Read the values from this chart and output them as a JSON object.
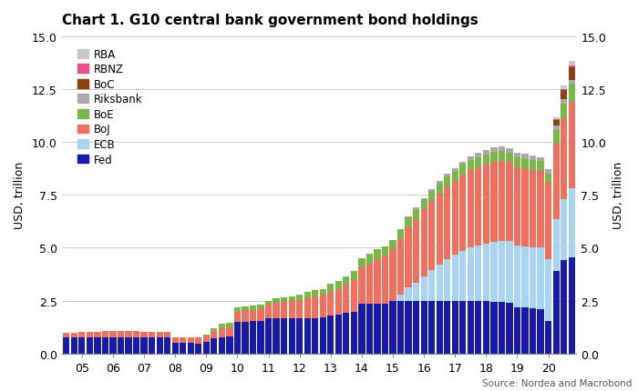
{
  "title": "Chart 1. G10 central bank government bond holdings",
  "ylabel_left": "USD, trillion",
  "ylabel_right": "USD, trillion",
  "source": "Source: Nordea and Macrobond",
  "ylim": [
    0,
    15.0
  ],
  "yticks": [
    0.0,
    2.5,
    5.0,
    7.5,
    10.0,
    12.5,
    15.0
  ],
  "colors": {
    "Fed": "#1a1aaa",
    "ECB": "#a8d4f0",
    "BoJ": "#f07060",
    "BoE": "#7ab648",
    "Riksbank": "#aaaaaa",
    "BoC": "#8B4010",
    "RBNZ": "#e8508a",
    "RBA": "#c8c8c8"
  },
  "series_order": [
    "Fed",
    "ECB",
    "BoJ",
    "BoE",
    "Riksbank",
    "BoC",
    "RBNZ",
    "RBA"
  ],
  "xtick_labels": [
    "05",
    "06",
    "07",
    "08",
    "09",
    "10",
    "11",
    "12",
    "13",
    "14",
    "15",
    "16",
    "17",
    "18",
    "19",
    "20"
  ],
  "data": {
    "Fed": [
      0.74,
      0.74,
      0.74,
      0.75,
      0.75,
      0.75,
      0.76,
      0.76,
      0.76,
      0.76,
      0.74,
      0.74,
      0.74,
      0.74,
      0.5,
      0.5,
      0.5,
      0.48,
      0.55,
      0.7,
      0.78,
      0.79,
      1.5,
      1.51,
      1.52,
      1.53,
      1.65,
      1.66,
      1.66,
      1.66,
      1.66,
      1.67,
      1.68,
      1.7,
      1.8,
      1.85,
      1.9,
      1.95,
      2.35,
      2.36,
      2.36,
      2.36,
      2.46,
      2.46,
      2.46,
      2.46,
      2.46,
      2.46,
      2.46,
      2.46,
      2.46,
      2.46,
      2.46,
      2.46,
      2.46,
      2.44,
      2.42,
      2.4,
      2.2,
      2.18,
      2.12,
      2.1,
      1.55,
      3.9,
      4.4,
      4.55
    ],
    "ECB": [
      0.0,
      0.0,
      0.0,
      0.0,
      0.0,
      0.0,
      0.0,
      0.0,
      0.0,
      0.0,
      0.0,
      0.0,
      0.0,
      0.0,
      0.0,
      0.0,
      0.0,
      0.0,
      0.0,
      0.0,
      0.0,
      0.0,
      0.0,
      0.0,
      0.0,
      0.0,
      0.0,
      0.0,
      0.0,
      0.0,
      0.0,
      0.0,
      0.0,
      0.0,
      0.0,
      0.0,
      0.0,
      0.0,
      0.0,
      0.0,
      0.0,
      0.0,
      0.0,
      0.3,
      0.65,
      0.9,
      1.2,
      1.5,
      1.75,
      2.0,
      2.2,
      2.4,
      2.55,
      2.65,
      2.75,
      2.85,
      2.9,
      2.9,
      2.9,
      2.9,
      2.9,
      2.9,
      2.9,
      2.45,
      2.9,
      3.25
    ],
    "BoJ": [
      0.24,
      0.25,
      0.26,
      0.27,
      0.28,
      0.29,
      0.29,
      0.29,
      0.29,
      0.29,
      0.28,
      0.28,
      0.27,
      0.27,
      0.27,
      0.27,
      0.27,
      0.28,
      0.3,
      0.36,
      0.41,
      0.44,
      0.47,
      0.52,
      0.55,
      0.58,
      0.65,
      0.73,
      0.78,
      0.82,
      0.88,
      0.95,
      1.01,
      1.06,
      1.13,
      1.2,
      1.35,
      1.53,
      1.73,
      1.9,
      2.1,
      2.25,
      2.45,
      2.65,
      2.85,
      3.0,
      3.15,
      3.25,
      3.35,
      3.43,
      3.5,
      3.58,
      3.65,
      3.7,
      3.74,
      3.78,
      3.78,
      3.74,
      3.7,
      3.68,
      3.65,
      3.62,
      3.6,
      3.58,
      3.8,
      4.1
    ],
    "BoE": [
      0.0,
      0.0,
      0.0,
      0.0,
      0.0,
      0.0,
      0.0,
      0.0,
      0.0,
      0.0,
      0.0,
      0.0,
      0.0,
      0.0,
      0.0,
      0.0,
      0.0,
      0.0,
      0.02,
      0.15,
      0.2,
      0.2,
      0.2,
      0.2,
      0.2,
      0.2,
      0.2,
      0.22,
      0.22,
      0.22,
      0.25,
      0.27,
      0.29,
      0.3,
      0.35,
      0.37,
      0.39,
      0.4,
      0.42,
      0.44,
      0.45,
      0.45,
      0.47,
      0.47,
      0.47,
      0.47,
      0.47,
      0.47,
      0.47,
      0.47,
      0.47,
      0.47,
      0.47,
      0.47,
      0.47,
      0.47,
      0.47,
      0.47,
      0.47,
      0.47,
      0.47,
      0.47,
      0.47,
      0.65,
      0.72,
      0.85
    ],
    "Riksbank": [
      0.0,
      0.0,
      0.0,
      0.0,
      0.0,
      0.0,
      0.0,
      0.0,
      0.0,
      0.0,
      0.0,
      0.0,
      0.0,
      0.0,
      0.0,
      0.0,
      0.0,
      0.0,
      0.0,
      0.0,
      0.0,
      0.0,
      0.0,
      0.0,
      0.0,
      0.0,
      0.0,
      0.0,
      0.0,
      0.0,
      0.0,
      0.0,
      0.0,
      0.0,
      0.0,
      0.0,
      0.0,
      0.0,
      0.0,
      0.0,
      0.0,
      0.0,
      0.0,
      0.0,
      0.04,
      0.06,
      0.07,
      0.09,
      0.11,
      0.13,
      0.15,
      0.17,
      0.18,
      0.2,
      0.2,
      0.2,
      0.2,
      0.2,
      0.2,
      0.2,
      0.2,
      0.2,
      0.2,
      0.2,
      0.2,
      0.2
    ],
    "BoC": [
      0.0,
      0.0,
      0.0,
      0.0,
      0.0,
      0.0,
      0.0,
      0.0,
      0.0,
      0.0,
      0.0,
      0.0,
      0.0,
      0.0,
      0.0,
      0.0,
      0.0,
      0.0,
      0.0,
      0.0,
      0.0,
      0.0,
      0.0,
      0.0,
      0.0,
      0.0,
      0.0,
      0.0,
      0.0,
      0.0,
      0.0,
      0.0,
      0.0,
      0.0,
      0.0,
      0.0,
      0.0,
      0.0,
      0.0,
      0.0,
      0.0,
      0.0,
      0.0,
      0.0,
      0.0,
      0.0,
      0.0,
      0.0,
      0.0,
      0.0,
      0.0,
      0.0,
      0.0,
      0.0,
      0.0,
      0.0,
      0.0,
      0.0,
      0.0,
      0.0,
      0.0,
      0.0,
      0.0,
      0.28,
      0.42,
      0.58
    ],
    "RBNZ": [
      0.0,
      0.0,
      0.0,
      0.0,
      0.0,
      0.0,
      0.0,
      0.0,
      0.0,
      0.0,
      0.0,
      0.0,
      0.0,
      0.0,
      0.0,
      0.0,
      0.0,
      0.0,
      0.0,
      0.0,
      0.0,
      0.0,
      0.0,
      0.0,
      0.0,
      0.0,
      0.0,
      0.0,
      0.0,
      0.0,
      0.0,
      0.0,
      0.0,
      0.0,
      0.0,
      0.0,
      0.0,
      0.0,
      0.0,
      0.0,
      0.0,
      0.0,
      0.0,
      0.0,
      0.0,
      0.0,
      0.0,
      0.0,
      0.0,
      0.0,
      0.0,
      0.0,
      0.0,
      0.0,
      0.0,
      0.0,
      0.0,
      0.0,
      0.0,
      0.0,
      0.0,
      0.0,
      0.0,
      0.04,
      0.07,
      0.08
    ],
    "RBA": [
      0.0,
      0.0,
      0.0,
      0.0,
      0.0,
      0.0,
      0.0,
      0.0,
      0.0,
      0.0,
      0.0,
      0.0,
      0.0,
      0.0,
      0.0,
      0.0,
      0.0,
      0.0,
      0.0,
      0.0,
      0.0,
      0.0,
      0.0,
      0.0,
      0.0,
      0.0,
      0.0,
      0.0,
      0.0,
      0.0,
      0.0,
      0.0,
      0.0,
      0.0,
      0.0,
      0.0,
      0.0,
      0.0,
      0.0,
      0.0,
      0.0,
      0.0,
      0.0,
      0.0,
      0.0,
      0.0,
      0.0,
      0.0,
      0.0,
      0.0,
      0.0,
      0.0,
      0.0,
      0.0,
      0.0,
      0.0,
      0.0,
      0.0,
      0.0,
      0.0,
      0.0,
      0.0,
      0.0,
      0.08,
      0.17,
      0.22
    ]
  }
}
